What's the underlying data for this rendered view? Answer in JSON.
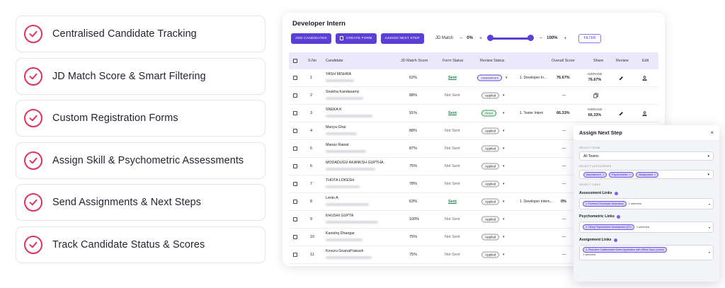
{
  "features": [
    {
      "label": "Centralised Candidate Tracking"
    },
    {
      "label": "JD Match Score & Smart Filtering"
    },
    {
      "label": "Custom Registration Forms"
    },
    {
      "label": "Assign Skill & Psychometric Assessments"
    },
    {
      "label": "Send Assignments & Next Steps"
    },
    {
      "label": "Track Candidate Status & Scores"
    }
  ],
  "card": {
    "title": "Developer Intern",
    "toolbar": {
      "add_candidates": "ADD CANDIDATES",
      "create_form": "CREATE FORM",
      "assign_next_step": "ASSIGN NEXT STEP",
      "jd_match": "JD Match",
      "minus": "−",
      "plus": "+",
      "min_value": "0%",
      "max_value": "100%",
      "filter": "FILTER"
    },
    "columns": [
      "S.No",
      "Candidate",
      "JD Match Score",
      "Form Status",
      "Review Status",
      "Overall Score",
      "Share",
      "Review",
      "Edit"
    ],
    "rows": [
      {
        "sno": "1",
        "name": "YASH MISHRA",
        "score": "62%",
        "form": "Sent",
        "review": "Assessment",
        "assessment": "1. Developer In...",
        "overall": "76.67%",
        "average_label": "AVERAGE",
        "average_value": "76.67%",
        "share": "average",
        "show_review": true
      },
      {
        "sno": "2",
        "name": "Snekha Kandasamy",
        "score": "88%",
        "form": "Not Sent",
        "review": "Applied",
        "assessment": "",
        "overall": "—",
        "average_label": "",
        "average_value": "",
        "share": "copy",
        "show_review": false
      },
      {
        "sno": "3",
        "name": "SNEKA K",
        "score": "91%",
        "form": "Sent",
        "review": "Hired",
        "assessment": "1. Tester Intern",
        "overall": "66.33%",
        "average_label": "AVERAGE",
        "average_value": "66.33%",
        "share": "average",
        "show_review": true
      },
      {
        "sno": "4",
        "name": "Manya Ghai",
        "score": "88%",
        "form": "Not Sent",
        "review": "Applied",
        "assessment": "",
        "overall": "—",
        "average_label": "",
        "average_value": "",
        "share": "none",
        "show_review": false
      },
      {
        "sno": "5",
        "name": "Manav Rawat",
        "score": "87%",
        "form": "Not Sent",
        "review": "Applied",
        "assessment": "",
        "overall": "—",
        "average_label": "",
        "average_value": "",
        "share": "none",
        "show_review": false
      },
      {
        "sno": "6",
        "name": "MODADUGU AKANKSH GUPTHA",
        "score": "75%",
        "form": "Not Sent",
        "review": "Applied",
        "assessment": "",
        "overall": "—",
        "average_label": "",
        "average_value": "",
        "share": "none",
        "show_review": false
      },
      {
        "sno": "7",
        "name": "THOTA LOKESH",
        "score": "78%",
        "form": "Not Sent",
        "review": "Applied",
        "assessment": "",
        "overall": "—",
        "average_label": "",
        "average_value": "",
        "share": "none",
        "show_review": false
      },
      {
        "sno": "8",
        "name": "Lenin A",
        "score": "63%",
        "form": "Sent",
        "review": "Applied",
        "assessment": "1. Developer Intern...",
        "overall": "0%",
        "average_label": "",
        "average_value": "",
        "share": "none",
        "show_review": false
      },
      {
        "sno": "9",
        "name": "KHUSHI GUPTA",
        "score": "100%",
        "form": "Not Sent",
        "review": "Applied",
        "assessment": "",
        "overall": "—",
        "average_label": "",
        "average_value": "",
        "share": "none",
        "show_review": false
      },
      {
        "sno": "10",
        "name": "Kanishq Dhangar",
        "score": "75%",
        "form": "Not Sent",
        "review": "Applied",
        "assessment": "",
        "overall": "—",
        "average_label": "",
        "average_value": "",
        "share": "none",
        "show_review": false
      },
      {
        "sno": "11",
        "name": "Kovuru GnanaPrakash",
        "score": "75%",
        "form": "Not Sent",
        "review": "Applied",
        "assessment": "",
        "overall": "—",
        "average_label": "",
        "average_value": "",
        "share": "none",
        "show_review": false
      }
    ]
  },
  "panel": {
    "title": "Assign Next Step",
    "close": "×",
    "select_team_label": "SELECT TEAM",
    "team_value": "All Teams",
    "select_categories_label": "SELECT CATEGORIES",
    "categories": [
      "Assessment",
      "Psychometric",
      "Assignment"
    ],
    "select_links_label": "SELECT LINKS",
    "assessment_links_label": "Assessment Links",
    "assessment_link_chip": "1. Frontend Developer (Interview)",
    "assessment_link_count": "1 selected",
    "psychometric_links_label": "Psychometric Links",
    "psychometric_link_chip": "1. Hiring Psychometric Assessment (QT)",
    "psychometric_link_count": "1 selected",
    "assignment_links_label": "Assignment Links",
    "assignment_link_chip": "1. Real-time Collaborative Notes Application with Offline Sync (Junior)",
    "assignment_link_count": "1 selected"
  },
  "colors": {
    "accent": "#5b3fd6",
    "check": "#e0325e",
    "sent": "#1d8a4c",
    "header_bg": "#ebe8fb"
  }
}
